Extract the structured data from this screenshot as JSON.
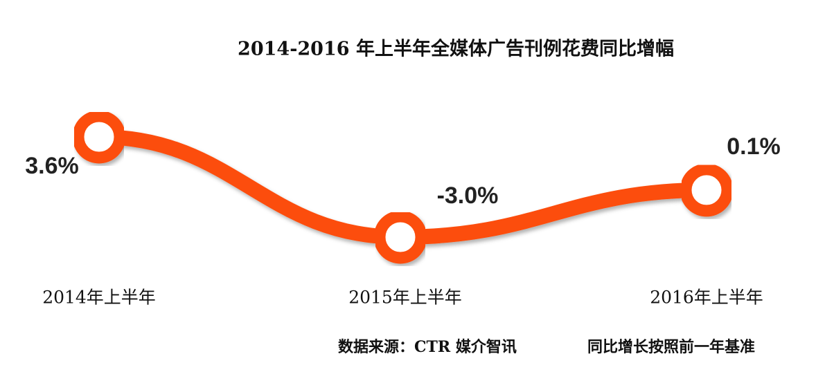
{
  "chart_data": {
    "type": "line",
    "title": "2014-2016 年上半年全媒体广告刊例花费同比增幅",
    "categories": [
      "2014年上半年",
      "2015年上半年",
      "2016年上半年"
    ],
    "series": [
      {
        "name": "同比增幅",
        "color": "#fc4e0b",
        "values": [
          3.6,
          -3.0,
          0.1
        ],
        "value_labels": [
          "3.6%",
          "-3.0%",
          "0.1%"
        ]
      }
    ],
    "notes": [
      "数据来源：CTR 媒介智讯",
      "同比增长按照前一年基准"
    ]
  }
}
